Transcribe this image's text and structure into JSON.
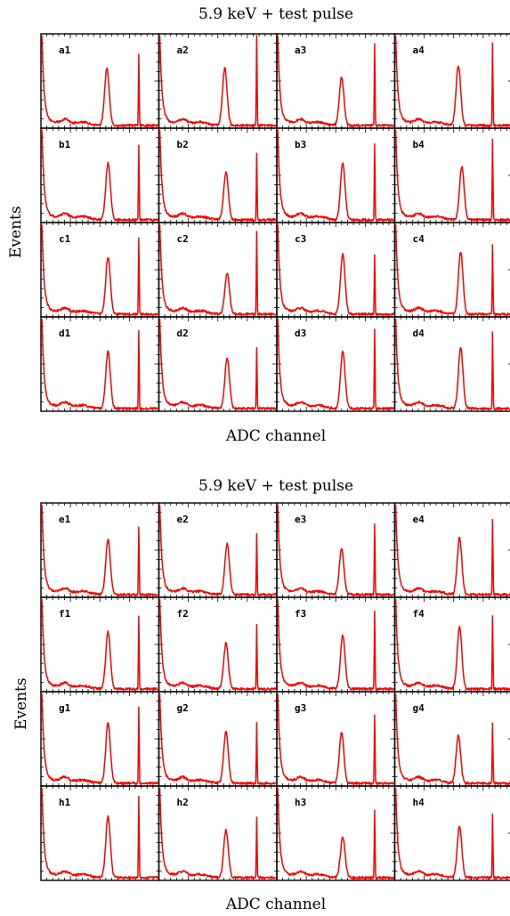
{
  "chart_data": [
    {
      "type": "line",
      "title": "5.9 keV + test pulse",
      "xlabel": "ADC channel",
      "ylabel": "Events",
      "grid": false,
      "line_color": "#ff0000",
      "rows": [
        {
          "labels": [
            "a1",
            "a2",
            "a3",
            "a4"
          ],
          "peak_heights": [
            0.62,
            0.62,
            0.52,
            0.65
          ],
          "pulse_heights": [
            0.78,
            1.0,
            0.9,
            0.9
          ],
          "peak_pos": [
            0.56,
            0.56,
            0.55,
            0.54
          ]
        },
        {
          "labels": [
            "b1",
            "b2",
            "b3",
            "b4"
          ],
          "peak_heights": [
            0.62,
            0.52,
            0.62,
            0.58
          ],
          "pulse_heights": [
            0.82,
            0.72,
            0.84,
            0.88
          ],
          "peak_pos": [
            0.57,
            0.57,
            0.56,
            0.57
          ]
        },
        {
          "labels": [
            "c1",
            "c2",
            "c3",
            "c4"
          ],
          "peak_heights": [
            0.62,
            0.44,
            0.65,
            0.68
          ],
          "pulse_heights": [
            0.84,
            0.9,
            0.66,
            0.76
          ],
          "peak_pos": [
            0.57,
            0.58,
            0.56,
            0.56
          ]
        },
        {
          "labels": [
            "d1",
            "d2",
            "d3",
            "d4"
          ],
          "peak_heights": [
            0.62,
            0.55,
            0.62,
            0.66
          ],
          "pulse_heights": [
            0.86,
            0.66,
            0.88,
            0.84
          ],
          "peak_pos": [
            0.57,
            0.58,
            0.56,
            0.56
          ]
        }
      ]
    },
    {
      "type": "line",
      "title": "5.9 keV + test pulse",
      "xlabel": "ADC channel",
      "ylabel": "Events",
      "grid": false,
      "line_color": "#ff0000",
      "rows": [
        {
          "labels": [
            "e1",
            "e2",
            "e3",
            "e4"
          ],
          "peak_heights": [
            0.6,
            0.55,
            0.5,
            0.62
          ],
          "pulse_heights": [
            0.74,
            0.66,
            0.78,
            0.82
          ],
          "peak_pos": [
            0.57,
            0.58,
            0.55,
            0.55
          ]
        },
        {
          "labels": [
            "f1",
            "f2",
            "f3",
            "f4"
          ],
          "peak_heights": [
            0.62,
            0.5,
            0.58,
            0.68
          ],
          "pulse_heights": [
            0.8,
            0.7,
            0.86,
            0.8
          ],
          "peak_pos": [
            0.57,
            0.57,
            0.56,
            0.55
          ]
        },
        {
          "labels": [
            "g1",
            "g2",
            "g3",
            "g4"
          ],
          "peak_heights": [
            0.66,
            0.56,
            0.55,
            0.52
          ],
          "pulse_heights": [
            0.84,
            0.66,
            0.76,
            0.66
          ],
          "peak_pos": [
            0.57,
            0.57,
            0.55,
            0.54
          ]
        },
        {
          "labels": [
            "h1",
            "h2",
            "h3",
            "h4"
          ],
          "peak_heights": [
            0.66,
            0.52,
            0.44,
            0.56
          ],
          "pulse_heights": [
            0.9,
            0.66,
            0.75,
            0.7
          ],
          "peak_pos": [
            0.57,
            0.57,
            0.56,
            0.55
          ]
        }
      ]
    }
  ]
}
